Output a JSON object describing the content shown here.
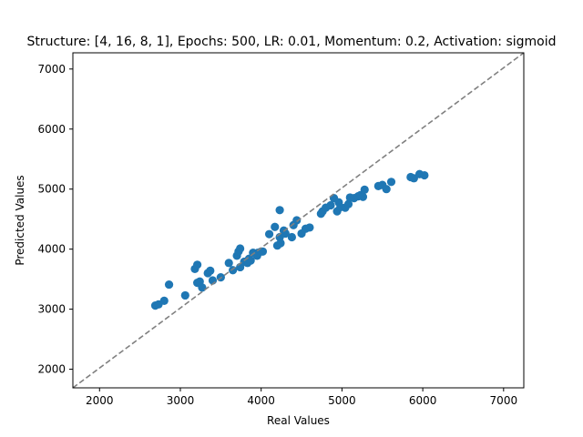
{
  "chart_data": {
    "type": "scatter",
    "title": "Structure: [4, 16, 8, 1], Epochs: 500, LR: 0.01, Momentum: 0.2, Activation: sigmoid",
    "xlabel": "Real Values",
    "ylabel": "Predicted Values",
    "xlim": [
      1670,
      7250
    ],
    "ylim": [
      1690,
      7270
    ],
    "xticks": [
      2000,
      3000,
      4000,
      5000,
      6000,
      7000
    ],
    "yticks": [
      2000,
      3000,
      4000,
      5000,
      6000,
      7000
    ],
    "grid": false,
    "point_color": "#1f77b4",
    "reference_line": {
      "style": "dashed",
      "color": "#808080",
      "from": [
        1670,
        1690
      ],
      "to": [
        7250,
        7270
      ]
    },
    "points": [
      [
        2690,
        3060
      ],
      [
        2730,
        3080
      ],
      [
        2800,
        3140
      ],
      [
        2860,
        3410
      ],
      [
        3060,
        3230
      ],
      [
        3180,
        3670
      ],
      [
        3210,
        3740
      ],
      [
        3210,
        3440
      ],
      [
        3240,
        3460
      ],
      [
        3270,
        3360
      ],
      [
        3340,
        3600
      ],
      [
        3370,
        3640
      ],
      [
        3400,
        3480
      ],
      [
        3500,
        3530
      ],
      [
        3600,
        3770
      ],
      [
        3650,
        3650
      ],
      [
        3700,
        3890
      ],
      [
        3720,
        3960
      ],
      [
        3740,
        4010
      ],
      [
        3740,
        3700
      ],
      [
        3790,
        3790
      ],
      [
        3830,
        3770
      ],
      [
        3850,
        3840
      ],
      [
        3870,
        3810
      ],
      [
        3900,
        3940
      ],
      [
        3950,
        3890
      ],
      [
        3960,
        3940
      ],
      [
        4000,
        3960
      ],
      [
        4020,
        3960
      ],
      [
        4100,
        4250
      ],
      [
        4170,
        4370
      ],
      [
        4200,
        4060
      ],
      [
        4230,
        4650
      ],
      [
        4230,
        4200
      ],
      [
        4240,
        4100
      ],
      [
        4280,
        4310
      ],
      [
        4300,
        4260
      ],
      [
        4380,
        4200
      ],
      [
        4400,
        4400
      ],
      [
        4440,
        4480
      ],
      [
        4500,
        4260
      ],
      [
        4550,
        4340
      ],
      [
        4600,
        4360
      ],
      [
        4740,
        4590
      ],
      [
        4760,
        4630
      ],
      [
        4800,
        4690
      ],
      [
        4860,
        4730
      ],
      [
        4900,
        4850
      ],
      [
        4940,
        4630
      ],
      [
        4960,
        4780
      ],
      [
        4980,
        4700
      ],
      [
        5040,
        4690
      ],
      [
        5080,
        4750
      ],
      [
        5100,
        4860
      ],
      [
        5150,
        4850
      ],
      [
        5200,
        4880
      ],
      [
        5230,
        4900
      ],
      [
        5260,
        4870
      ],
      [
        5280,
        4990
      ],
      [
        5450,
        5050
      ],
      [
        5500,
        5070
      ],
      [
        5550,
        5000
      ],
      [
        5610,
        5120
      ],
      [
        5850,
        5200
      ],
      [
        5890,
        5180
      ],
      [
        5960,
        5250
      ],
      [
        6020,
        5230
      ]
    ]
  }
}
